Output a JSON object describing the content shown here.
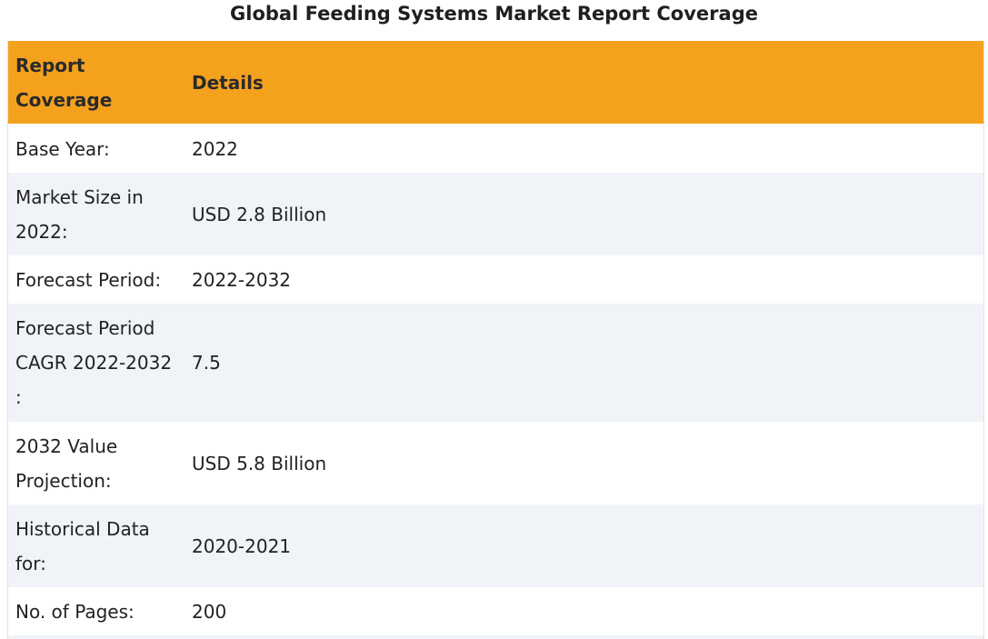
{
  "title": "Global Feeding Systems Market Report Coverage",
  "table": {
    "header": {
      "col1_line1": "Report",
      "col1_line2": "Coverage",
      "col2": "Details"
    },
    "rows": [
      {
        "label_lines": [
          "Base Year:"
        ],
        "value": "2022"
      },
      {
        "label_lines": [
          "Market Size in",
          "2022:"
        ],
        "value": "USD 2.8 Billion"
      },
      {
        "label_lines": [
          "Forecast Period:"
        ],
        "value": "2022-2032"
      },
      {
        "label_lines": [
          "Forecast Period",
          "CAGR 2022-2032",
          ":"
        ],
        "value": "7.5"
      },
      {
        "label_lines": [
          "2032 Value",
          "Projection:"
        ],
        "value": "USD 5.8 Billion"
      },
      {
        "label_lines": [
          "Historical Data",
          "for:"
        ],
        "value": "2020-2021"
      },
      {
        "label_lines": [
          "No. of Pages:"
        ],
        "value": "200"
      }
    ]
  },
  "colors": {
    "header_bg": "#f4a11e",
    "row_alt_bg": "#f0f3f8",
    "row_bg": "#ffffff"
  }
}
